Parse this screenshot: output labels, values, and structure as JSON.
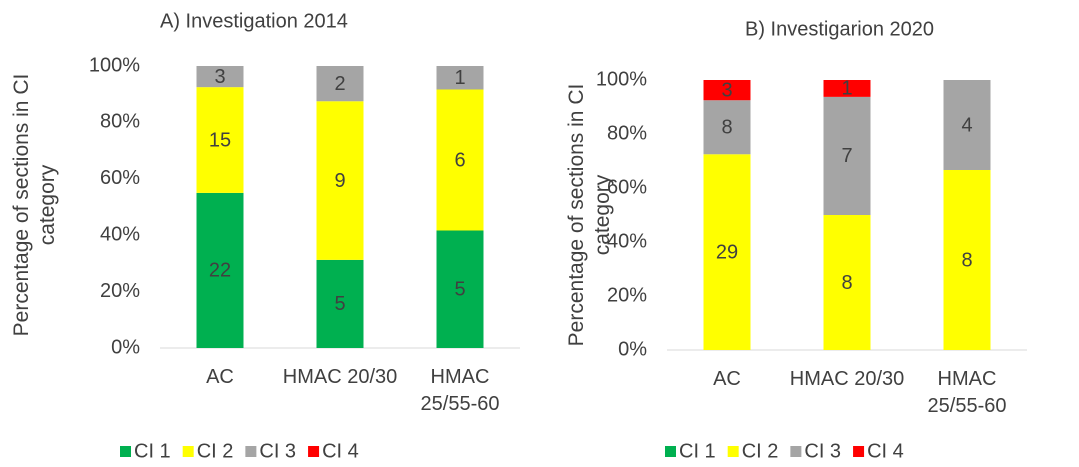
{
  "chart_data": [
    {
      "type": "bar",
      "stacked": "percent",
      "title": "A) Investigation 2014",
      "ylabel": "Percentage of sections in CI category",
      "categories": [
        "AC",
        "HMAC 20/30",
        "HMAC 25/55-60"
      ],
      "series": [
        {
          "name": "CI 1",
          "color": "#00b050",
          "values": [
            22,
            5,
            5
          ]
        },
        {
          "name": "CI 2",
          "color": "#ffff00",
          "values": [
            15,
            9,
            6
          ]
        },
        {
          "name": "CI 3",
          "color": "#a5a5a5",
          "values": [
            3,
            2,
            1
          ]
        },
        {
          "name": "CI 4",
          "color": "#ff0000",
          "values": [
            0,
            0,
            0
          ]
        }
      ],
      "ylim": [
        0,
        100
      ],
      "yticks": [
        {
          "value": 0,
          "label": "0%"
        },
        {
          "value": 20,
          "label": "20%"
        },
        {
          "value": 40,
          "label": "40%"
        },
        {
          "value": 60,
          "label": "60%"
        },
        {
          "value": 80,
          "label": "80%"
        },
        {
          "value": 100,
          "label": "100%"
        }
      ],
      "legend": "bottom"
    },
    {
      "type": "bar",
      "stacked": "percent",
      "title": "B) Investigarion 2020",
      "ylabel": "Percentage of sections in CI category",
      "categories": [
        "AC",
        "HMAC 20/30",
        "HMAC 25/55-60"
      ],
      "series": [
        {
          "name": "CI 1",
          "color": "#00b050",
          "values": [
            0,
            0,
            0
          ]
        },
        {
          "name": "CI 2",
          "color": "#ffff00",
          "values": [
            29,
            8,
            8
          ]
        },
        {
          "name": "CI 3",
          "color": "#a5a5a5",
          "values": [
            8,
            7,
            4
          ]
        },
        {
          "name": "CI 4",
          "color": "#ff0000",
          "values": [
            3,
            1,
            0
          ]
        }
      ],
      "ylim": [
        0,
        100
      ],
      "yticks": [
        {
          "value": 0,
          "label": "0%"
        },
        {
          "value": 20,
          "label": "20%"
        },
        {
          "value": 40,
          "label": "40%"
        },
        {
          "value": 60,
          "label": "60%"
        },
        {
          "value": 80,
          "label": "80%"
        },
        {
          "value": 100,
          "label": "100%"
        }
      ],
      "legend": "bottom"
    }
  ]
}
